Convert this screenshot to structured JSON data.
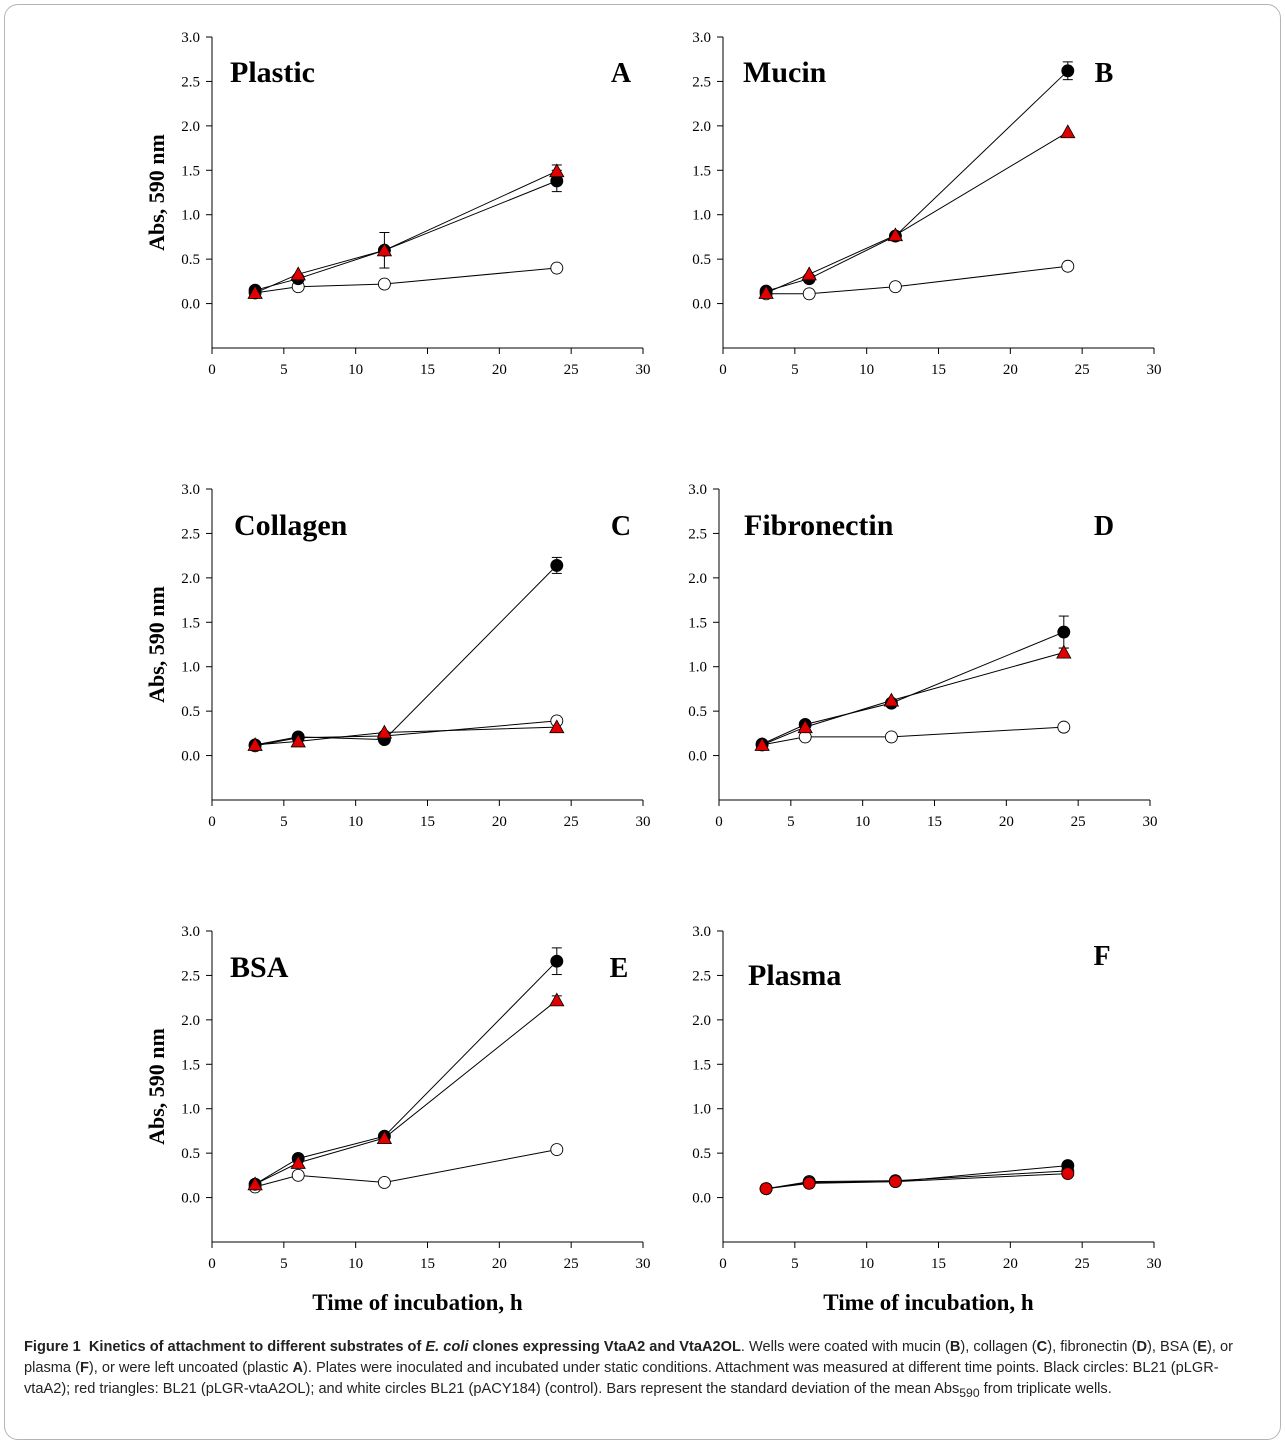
{
  "colors": {
    "black_circle": "#000000",
    "red_triangle": "#e00000",
    "red_circle": "#e00000",
    "white_circle": "#ffffff",
    "axis": "#000000",
    "frame_border": "#b5b5b5"
  },
  "chart_data": [
    {
      "id": "A",
      "type": "line",
      "title": "Plastic",
      "panel_letter": "A",
      "ylabel": "Abs, 590 nm",
      "xlabel": "",
      "xlim": [
        0,
        30
      ],
      "ylim": [
        -0.5,
        3.0
      ],
      "xticks": [
        0,
        5,
        10,
        15,
        20,
        25,
        30
      ],
      "yticks": [
        0.0,
        0.5,
        1.0,
        1.5,
        2.0,
        2.5,
        3.0
      ],
      "x": [
        3,
        6,
        12,
        24
      ],
      "series": [
        {
          "marker": "circle",
          "fill": "#ffffff",
          "values": [
            0.12,
            0.19,
            0.22,
            0.4
          ],
          "err": [
            0,
            0,
            0,
            0
          ]
        },
        {
          "marker": "circle",
          "fill": "#000000",
          "values": [
            0.15,
            0.28,
            0.6,
            1.38
          ],
          "err": [
            0,
            0,
            0.2,
            0.12
          ]
        },
        {
          "marker": "triangle",
          "fill": "#e00000",
          "values": [
            0.12,
            0.33,
            0.6,
            1.49
          ],
          "err": [
            0,
            0,
            0,
            0.07
          ]
        }
      ]
    },
    {
      "id": "B",
      "type": "line",
      "title": "Mucin",
      "panel_letter": "B",
      "ylabel": "",
      "xlabel": "",
      "xlim": [
        0,
        30
      ],
      "ylim": [
        -0.5,
        3.0
      ],
      "xticks": [
        0,
        5,
        10,
        15,
        20,
        25,
        30
      ],
      "yticks": [
        0.0,
        0.5,
        1.0,
        1.5,
        2.0,
        2.5,
        3.0
      ],
      "x": [
        3,
        6,
        12,
        24
      ],
      "series": [
        {
          "marker": "circle",
          "fill": "#ffffff",
          "values": [
            0.11,
            0.11,
            0.19,
            0.42
          ],
          "err": [
            0,
            0,
            0,
            0
          ]
        },
        {
          "marker": "circle",
          "fill": "#000000",
          "values": [
            0.14,
            0.28,
            0.76,
            2.62
          ],
          "err": [
            0,
            0,
            0,
            0.1
          ]
        },
        {
          "marker": "triangle",
          "fill": "#e00000",
          "values": [
            0.12,
            0.33,
            0.77,
            1.93
          ],
          "err": [
            0,
            0,
            0,
            0
          ]
        }
      ]
    },
    {
      "id": "C",
      "type": "line",
      "title": "Collagen",
      "panel_letter": "C",
      "ylabel": "Abs, 590 nm",
      "xlabel": "",
      "xlim": [
        0,
        30
      ],
      "ylim": [
        -0.5,
        3.0
      ],
      "xticks": [
        0,
        5,
        10,
        15,
        20,
        25,
        30
      ],
      "yticks": [
        0.0,
        0.5,
        1.0,
        1.5,
        2.0,
        2.5,
        3.0
      ],
      "x": [
        3,
        6,
        12,
        24
      ],
      "series": [
        {
          "marker": "circle",
          "fill": "#ffffff",
          "values": [
            0.11,
            0.2,
            0.22,
            0.39
          ],
          "err": [
            0,
            0,
            0,
            0
          ]
        },
        {
          "marker": "circle",
          "fill": "#000000",
          "values": [
            0.12,
            0.21,
            0.18,
            2.14
          ],
          "err": [
            0,
            0,
            0,
            0.09
          ]
        },
        {
          "marker": "triangle",
          "fill": "#e00000",
          "values": [
            0.12,
            0.16,
            0.26,
            0.32
          ],
          "err": [
            0,
            0,
            0,
            0.05
          ]
        }
      ]
    },
    {
      "id": "D",
      "type": "line",
      "title": "Fibronectin",
      "panel_letter": "D",
      "ylabel": "",
      "xlabel": "",
      "xlim": [
        0,
        30
      ],
      "ylim": [
        -0.5,
        3.0
      ],
      "xticks": [
        0,
        5,
        10,
        15,
        20,
        25,
        30
      ],
      "yticks": [
        0.0,
        0.5,
        1.0,
        1.5,
        2.0,
        2.5,
        3.0
      ],
      "x": [
        3,
        6,
        12,
        24
      ],
      "series": [
        {
          "marker": "circle",
          "fill": "#ffffff",
          "values": [
            0.12,
            0.21,
            0.21,
            0.32
          ],
          "err": [
            0,
            0,
            0,
            0
          ]
        },
        {
          "marker": "circle",
          "fill": "#000000",
          "values": [
            0.13,
            0.35,
            0.59,
            1.39
          ],
          "err": [
            0,
            0,
            0,
            0.18
          ]
        },
        {
          "marker": "triangle",
          "fill": "#e00000",
          "values": [
            0.12,
            0.32,
            0.62,
            1.16
          ],
          "err": [
            0,
            0,
            0,
            0.05
          ]
        }
      ]
    },
    {
      "id": "E",
      "type": "line",
      "title": "BSA",
      "panel_letter": "E",
      "ylabel": "Abs, 590 nm",
      "xlabel": "Time of incubation, h",
      "xlim": [
        0,
        30
      ],
      "ylim": [
        -0.5,
        3.0
      ],
      "xticks": [
        0,
        5,
        10,
        15,
        20,
        25,
        30
      ],
      "yticks": [
        0.0,
        0.5,
        1.0,
        1.5,
        2.0,
        2.5,
        3.0
      ],
      "x": [
        3,
        6,
        12,
        24
      ],
      "series": [
        {
          "marker": "circle",
          "fill": "#ffffff",
          "values": [
            0.12,
            0.25,
            0.17,
            0.54
          ],
          "err": [
            0,
            0,
            0,
            0
          ]
        },
        {
          "marker": "circle",
          "fill": "#000000",
          "values": [
            0.15,
            0.44,
            0.69,
            2.66
          ],
          "err": [
            0,
            0,
            0,
            0.15
          ]
        },
        {
          "marker": "triangle",
          "fill": "#e00000",
          "values": [
            0.15,
            0.39,
            0.67,
            2.22
          ],
          "err": [
            0,
            0,
            0,
            0.05
          ]
        }
      ]
    },
    {
      "id": "F",
      "type": "line",
      "title": "Plasma",
      "panel_letter": "F",
      "ylabel": "",
      "xlabel": "Time of incubation, h",
      "xlim": [
        0,
        30
      ],
      "ylim": [
        -0.5,
        3.0
      ],
      "xticks": [
        0,
        5,
        10,
        15,
        20,
        25,
        30
      ],
      "yticks": [
        0.0,
        0.5,
        1.0,
        1.5,
        2.0,
        2.5,
        3.0
      ],
      "x": [
        3,
        6,
        12,
        24
      ],
      "series": [
        {
          "marker": "circle",
          "fill": "#ffffff",
          "values": [
            0.1,
            0.18,
            0.19,
            0.3
          ],
          "err": [
            0,
            0,
            0,
            0
          ]
        },
        {
          "marker": "circle",
          "fill": "#000000",
          "values": [
            0.1,
            0.17,
            0.18,
            0.36
          ],
          "err": [
            0,
            0,
            0,
            0.03
          ]
        },
        {
          "marker": "circle",
          "fill": "#e00000",
          "values": [
            0.1,
            0.16,
            0.18,
            0.27
          ],
          "err": [
            0,
            0,
            0,
            0
          ]
        }
      ]
    }
  ],
  "caption": {
    "label": "Figure 1",
    "title_pre": "Kinetics of attachment to different substrates of ",
    "title_italic": "E. coli",
    "title_post": " clones expressing VtaA2 and VtaA2OL",
    "t1": ". Wells were coated with mucin (",
    "b1": "B",
    "t2": "), collagen (",
    "b2": "C",
    "t3": "), fibronectin (",
    "b3": "D",
    "t4": "), BSA (",
    "b4": "E",
    "t5": "), or plasma (",
    "b5": "F",
    "t6": "), or were left uncoated (plastic ",
    "b6": "A",
    "t7": "). Plates were inoculated and incubated under static conditions. Attachment was measured at different time points. Black circles: BL21 (pLGR-vtaA2); red triangles: BL21 (pLGR-vtaA2OL); and white circles BL21 (pACY184) (control). Bars represent the standard deviation of the mean Abs",
    "sub": "590",
    "t8": " from triplicate wells."
  }
}
